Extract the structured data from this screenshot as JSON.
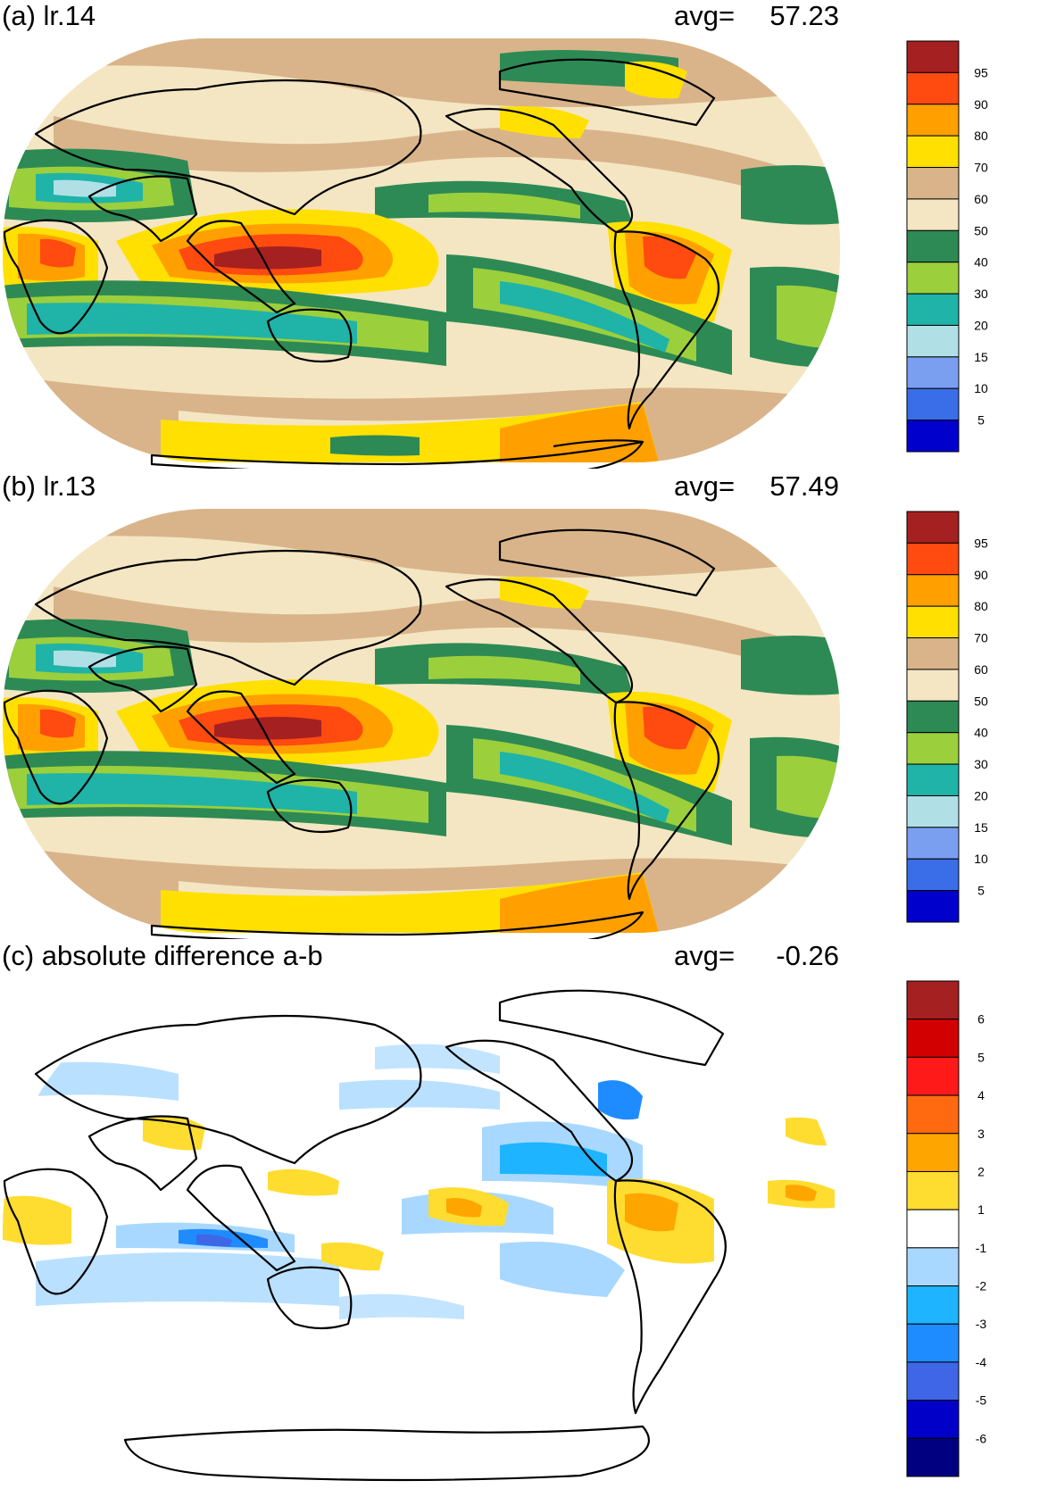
{
  "panels": [
    {
      "id": "a",
      "title": "(a) lr.14",
      "avg_label": "avg=",
      "avg_value": "57.23",
      "colorbar": {
        "labels": [
          "95",
          "90",
          "80",
          "70",
          "60",
          "50",
          "40",
          "30",
          "20",
          "15",
          "10",
          "5"
        ],
        "colors": [
          "#a52020",
          "#ff4a10",
          "#ffa000",
          "#ffe000",
          "#d9b48a",
          "#f4e6c2",
          "#2d8a55",
          "#9bcf3c",
          "#20b3a8",
          "#b0e0e6",
          "#7a9ff0",
          "#3a6ee8",
          "#0000cd"
        ]
      }
    },
    {
      "id": "b",
      "title": "(b) lr.13",
      "avg_label": "avg=",
      "avg_value": "57.49",
      "colorbar": {
        "labels": [
          "95",
          "90",
          "80",
          "70",
          "60",
          "50",
          "40",
          "30",
          "20",
          "15",
          "10",
          "5"
        ],
        "colors": [
          "#a52020",
          "#ff4a10",
          "#ffa000",
          "#ffe000",
          "#d9b48a",
          "#f4e6c2",
          "#2d8a55",
          "#9bcf3c",
          "#20b3a8",
          "#b0e0e6",
          "#7a9ff0",
          "#3a6ee8",
          "#0000cd"
        ]
      }
    },
    {
      "id": "c",
      "title": "(c) absolute difference a-b",
      "avg_label": "avg=",
      "avg_value": "-0.26",
      "colorbar": {
        "labels": [
          "6",
          "5",
          "4",
          "3",
          "2",
          "1",
          "-1",
          "-2",
          "-3",
          "-4",
          "-5",
          "-6"
        ],
        "colors": [
          "#a52020",
          "#d30000",
          "#ff1a1a",
          "#ff6a10",
          "#ffa500",
          "#ffdc30",
          "#ffffff",
          "#a8d8ff",
          "#1eb4ff",
          "#1e8cff",
          "#3f66e6",
          "#0000c8",
          "#000080"
        ]
      }
    }
  ]
}
